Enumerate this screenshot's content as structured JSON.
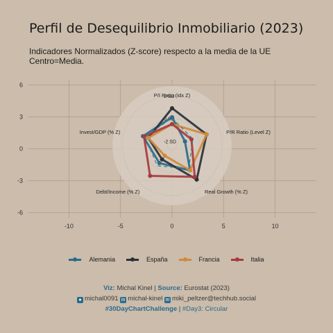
{
  "title": "Perfil de Desequilibrio Inmobiliario (2023)",
  "subtitle_line1": "Indicadores Normalizados (Z-score) respecto a la media de la UE",
  "subtitle_line2": "Centro=Media.",
  "chart_data": {
    "type": "radar",
    "axes": [
      "P/I Ratio (Idx Z)",
      "P/R Ratio (Level Z)",
      "Real Growth (% Z)",
      "Debt/Income (% Z)",
      "Invest/GDP (% Z)"
    ],
    "ring_labels": [
      "2 SD",
      "0 SD",
      "-2 SD"
    ],
    "x_ticks": [
      -10,
      -5,
      0,
      5,
      10
    ],
    "y_ticks": [
      6,
      3,
      0,
      -3,
      -6
    ],
    "xlim": [
      -14,
      14
    ],
    "ylim": [
      -6.5,
      6.5
    ],
    "grid": true,
    "legend_position": "bottom",
    "series": [
      {
        "name": "Alemania",
        "color": "#2b6a8c",
        "values": [
          0.1,
          -1.2,
          0.3,
          -0.5,
          0.3
        ]
      },
      {
        "name": "España",
        "color": "#2a3139",
        "values": [
          0.9,
          0.8,
          1.3,
          -0.9,
          -0.2
        ]
      },
      {
        "name": "Francia",
        "color": "#cf8a3b",
        "values": [
          -0.5,
          0.8,
          0.3,
          -1.3,
          -0.2
        ]
      },
      {
        "name": "Italia",
        "color": "#a83a3f",
        "values": [
          -0.5,
          -0.6,
          1.0,
          0.9,
          0.2
        ]
      }
    ]
  },
  "caption": {
    "viz_label": "Viz:",
    "viz_value": "Michal Kinel",
    "sep": "|",
    "source_label": "Source:",
    "source_value": "Eurostat (2023)",
    "github_icon": "github-icon",
    "github": "michal0091",
    "linkedin_icon": "linkedin-icon",
    "linkedin": "michal-kinel",
    "mastodon_icon": "mastodon-icon",
    "mastodon": "miki_peltzer@techhub.social",
    "hashtag": "#30DayChartChallenge",
    "day": "#Day3: Circular"
  }
}
